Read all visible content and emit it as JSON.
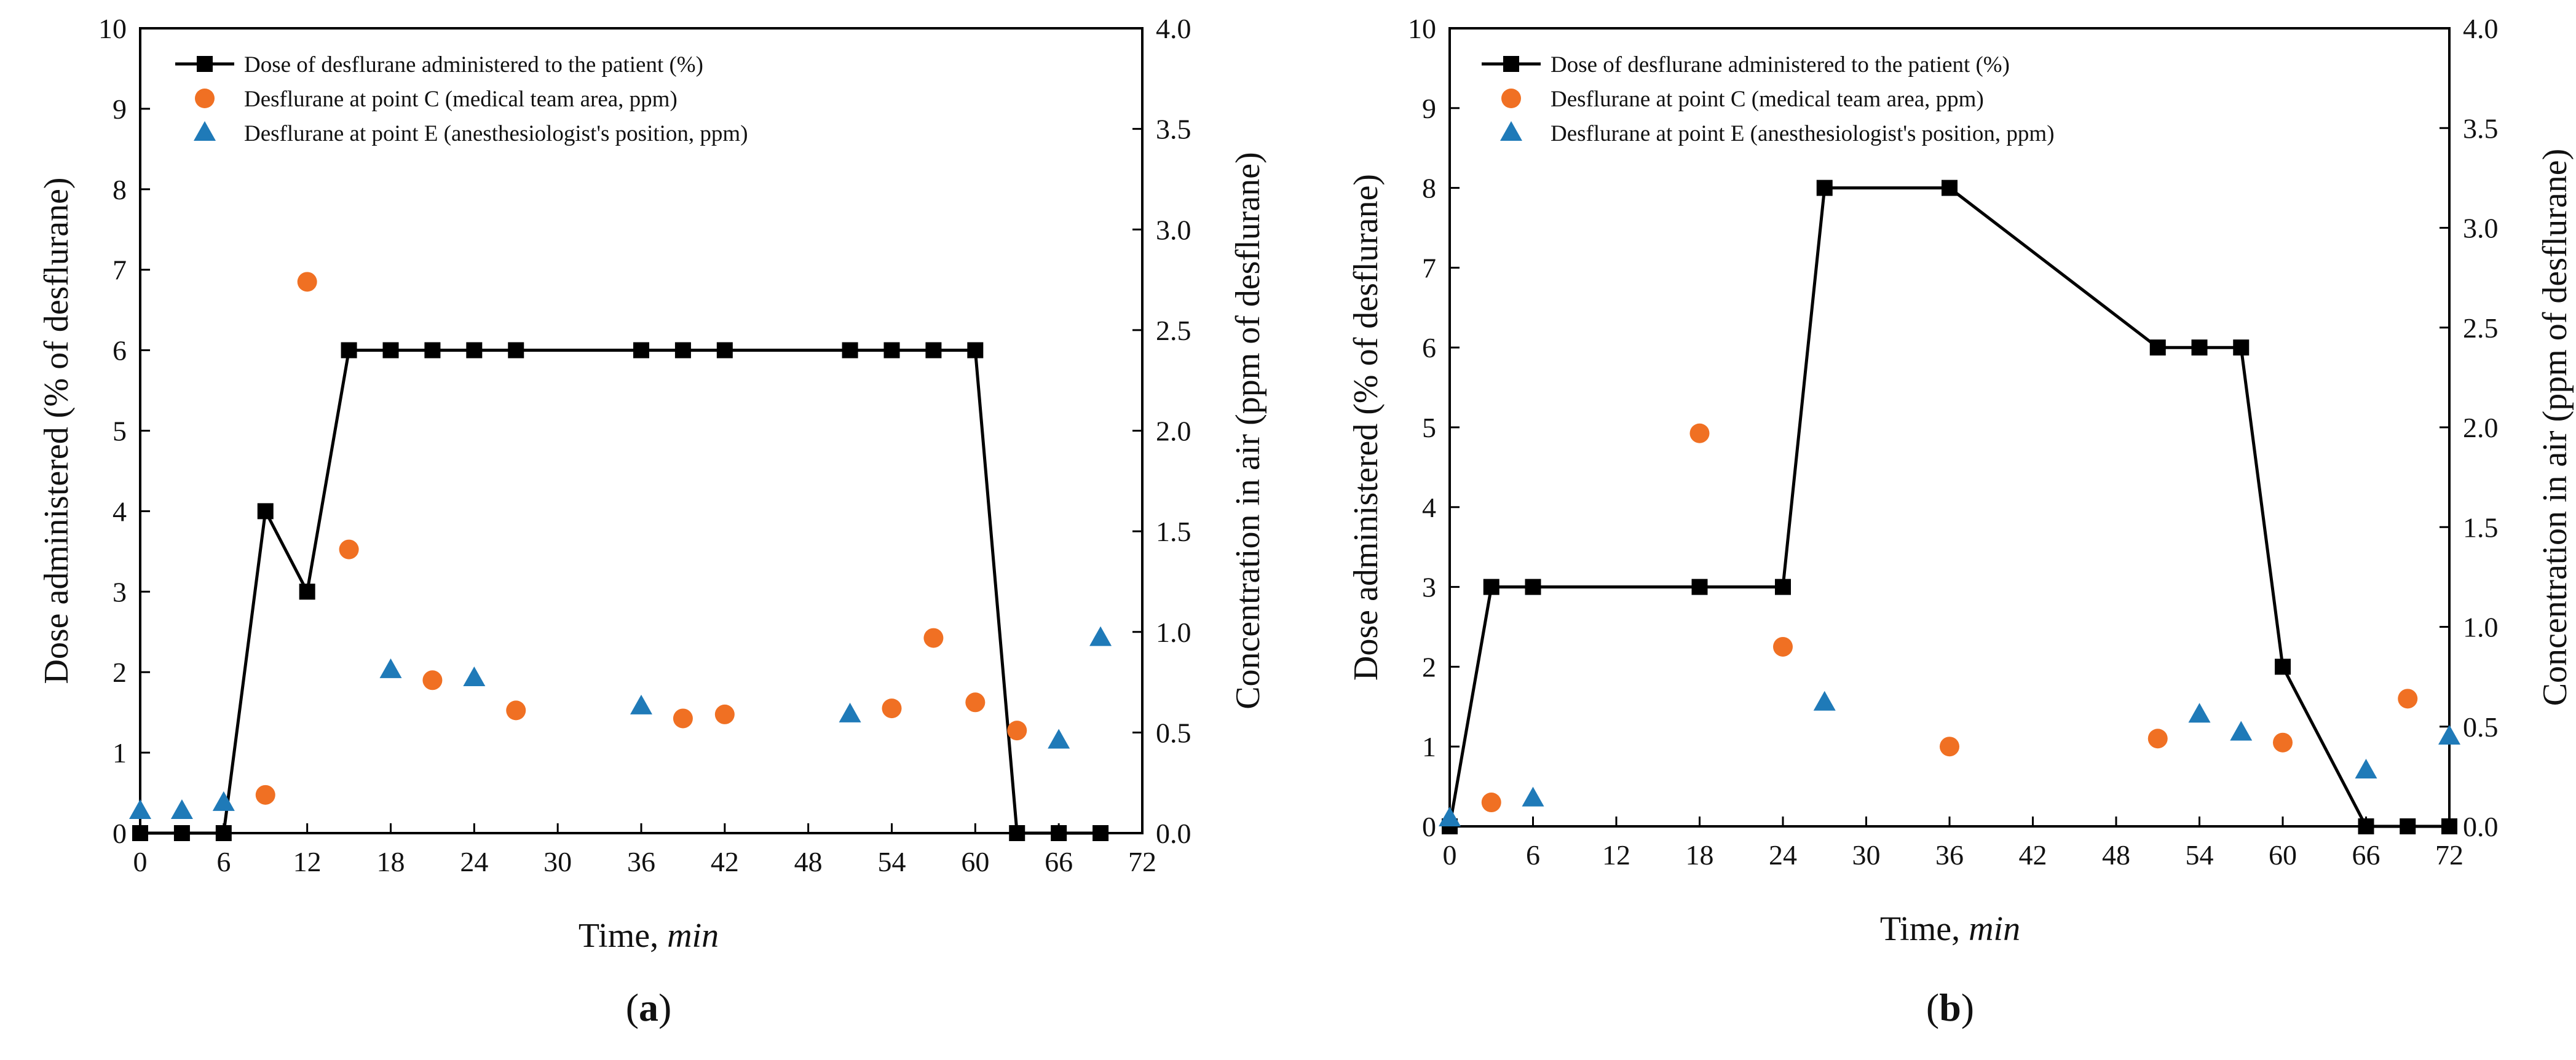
{
  "figure": {
    "colors": {
      "dose": "#000000",
      "point_c": "#f07023",
      "point_e": "#1f7ab8",
      "axis": "#000000"
    }
  },
  "chart_data": [
    {
      "type": "line+scatter",
      "panel_label": "(a)",
      "panel_letter": "a",
      "xlabel_main": "Time, ",
      "xlabel_unit": "min",
      "ylabel": "Dose administered (% of desflurane)",
      "ylabel_right": "Concentration in air (ppm of desflurane)",
      "xlim": [
        0,
        72
      ],
      "ylim": [
        0,
        10
      ],
      "ylim_right": [
        0,
        4.0
      ],
      "xticks": [
        0,
        6,
        12,
        18,
        24,
        30,
        36,
        42,
        48,
        54,
        60,
        66,
        72
      ],
      "yticks": [
        0,
        1,
        2,
        3,
        4,
        5,
        6,
        7,
        8,
        9,
        10
      ],
      "yticks_right": [
        "0.0",
        "0.5",
        "1.0",
        "1.5",
        "2.0",
        "2.5",
        "3.0",
        "3.5",
        "4.0"
      ],
      "legend_position": "top-left",
      "series": [
        {
          "name": "Dose of desflurane administered to the patient (%)",
          "axis": "left",
          "marker": "square",
          "line": true,
          "x": [
            0,
            3,
            6,
            9,
            12,
            15,
            18,
            21,
            24,
            27,
            36,
            39,
            42,
            51,
            54,
            57,
            60,
            63,
            66,
            69
          ],
          "y": [
            0,
            0,
            0,
            4,
            3,
            6,
            6,
            6,
            6,
            6,
            6,
            6,
            6,
            6,
            6,
            6,
            6,
            0,
            0,
            0
          ]
        },
        {
          "name": "Desflurane at point C (medical team area, ppm)",
          "axis": "right",
          "marker": "circle",
          "line": false,
          "x": [
            9,
            12,
            15,
            21,
            27,
            39,
            42,
            54,
            57,
            60,
            63
          ],
          "y": [
            0.19,
            2.74,
            1.41,
            0.76,
            0.61,
            0.57,
            0.59,
            0.62,
            0.97,
            0.65,
            0.51
          ]
        },
        {
          "name": "Desflurane at point E (anesthesiologist's position, ppm)",
          "axis": "right",
          "marker": "triangle",
          "line": false,
          "x": [
            0,
            3,
            6,
            18,
            24,
            36,
            51,
            66,
            69
          ],
          "y": [
            0.11,
            0.11,
            0.15,
            0.81,
            0.77,
            0.63,
            0.59,
            0.46,
            0.97
          ]
        }
      ]
    },
    {
      "type": "line+scatter",
      "panel_label": "(b)",
      "panel_letter": "b",
      "xlabel_main": "Time, ",
      "xlabel_unit": "min",
      "ylabel": "Dose administered (% of desflurane)",
      "ylabel_right": "Concentration in air (ppm of desflurane)",
      "xlim": [
        0,
        72
      ],
      "ylim": [
        0,
        10
      ],
      "ylim_right": [
        0,
        4.0
      ],
      "xticks": [
        0,
        6,
        12,
        18,
        24,
        30,
        36,
        42,
        48,
        54,
        60,
        66,
        72
      ],
      "yticks": [
        0,
        1,
        2,
        3,
        4,
        5,
        6,
        7,
        8,
        9,
        10
      ],
      "yticks_right": [
        "0.0",
        "0.5",
        "1.0",
        "1.5",
        "2.0",
        "2.5",
        "3.0",
        "3.5",
        "4.0"
      ],
      "legend_position": "top-left",
      "series": [
        {
          "name": "Dose of desflurane administered to the patient (%)",
          "axis": "left",
          "marker": "square",
          "line": true,
          "x": [
            0,
            3,
            6,
            18,
            24,
            27,
            36,
            51,
            54,
            57,
            60,
            66,
            69,
            72
          ],
          "y": [
            0,
            3,
            3,
            3,
            3,
            8,
            8,
            6,
            6,
            6,
            2,
            0,
            0,
            0
          ]
        },
        {
          "name": "Desflurane at point C (medical team area, ppm)",
          "axis": "right",
          "marker": "circle",
          "line": false,
          "x": [
            3,
            18,
            24,
            36,
            51,
            60,
            69
          ],
          "y": [
            0.12,
            1.97,
            0.9,
            0.4,
            0.44,
            0.42,
            0.64
          ]
        },
        {
          "name": "Desflurane at point E (anesthesiologist's position, ppm)",
          "axis": "right",
          "marker": "triangle",
          "line": false,
          "x": [
            0,
            6,
            27,
            54,
            57,
            66,
            72
          ],
          "y": [
            0.04,
            0.14,
            0.62,
            0.56,
            0.47,
            0.28,
            0.45
          ]
        }
      ]
    }
  ]
}
